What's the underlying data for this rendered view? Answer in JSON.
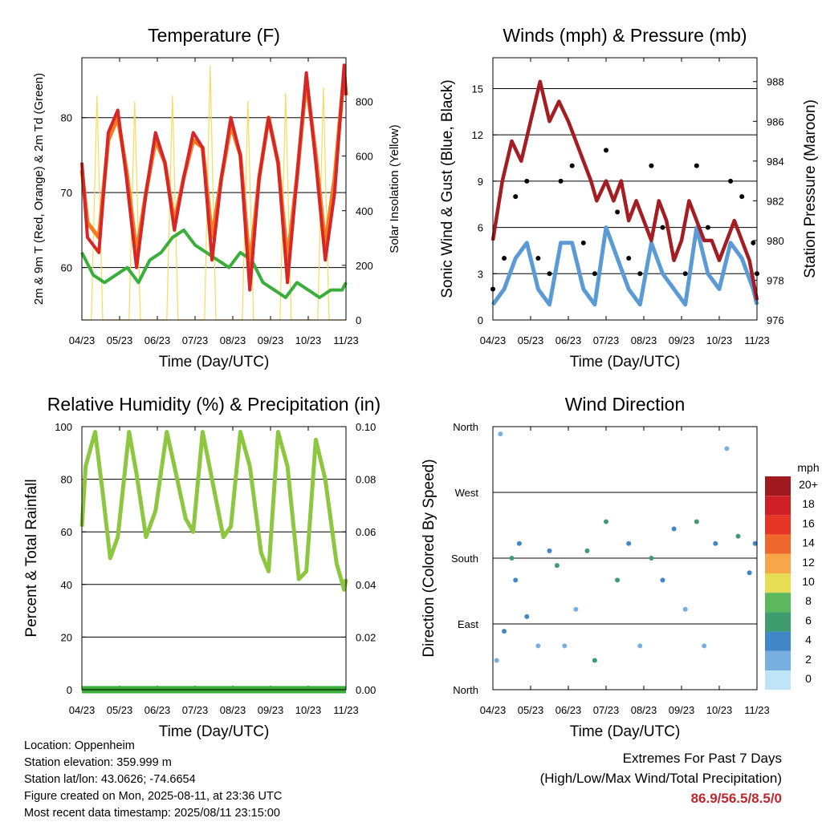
{
  "chart_data": [
    {
      "type": "line",
      "title": "Temperature (F)",
      "xlabel": "Time (Day/UTC)",
      "ylabel": "2m & 9m T (Red, Orange) & 2m Td (Green)",
      "y2label": "Solar Insolation (Yellow)",
      "x_ticks": [
        "04/23",
        "05/23",
        "06/23",
        "07/23",
        "08/23",
        "09/23",
        "10/23",
        "11/23"
      ],
      "x_range": [
        0,
        7
      ],
      "ylim": [
        53,
        88
      ],
      "yticks": [
        60,
        70,
        80
      ],
      "y2lim": [
        0,
        960
      ],
      "y2ticks": [
        0,
        200,
        400,
        600,
        800
      ],
      "grid": "horizontal",
      "series": [
        {
          "name": "2m T",
          "color": "#d62728",
          "axis": "left",
          "x": [
            0.0,
            0.15,
            0.45,
            0.7,
            0.95,
            1.18,
            1.45,
            1.7,
            1.95,
            2.2,
            2.45,
            2.7,
            2.95,
            3.2,
            3.45,
            3.7,
            3.95,
            4.2,
            4.45,
            4.7,
            4.95,
            5.2,
            5.45,
            5.7,
            5.95,
            6.2,
            6.45,
            6.7,
            6.95,
            7.0
          ],
          "y": [
            74,
            64,
            62,
            78,
            81,
            72,
            60,
            70,
            78,
            74,
            65,
            72,
            78,
            76,
            61,
            72,
            80,
            75,
            57,
            72,
            80,
            74,
            58,
            72,
            86,
            74,
            61,
            70,
            87,
            83
          ]
        },
        {
          "name": "9m T",
          "color": "#f47c20",
          "axis": "left",
          "x": [
            0.0,
            0.15,
            0.45,
            0.7,
            0.95,
            1.18,
            1.45,
            1.7,
            1.95,
            2.2,
            2.45,
            2.7,
            2.95,
            3.2,
            3.45,
            3.7,
            3.95,
            4.2,
            4.45,
            4.7,
            4.95,
            5.2,
            5.45,
            5.7,
            5.95,
            6.2,
            6.45,
            6.7,
            6.95,
            7.0
          ],
          "y": [
            73,
            66,
            64,
            77,
            80,
            73,
            62,
            70,
            77,
            74,
            66,
            72,
            77,
            76,
            64,
            72,
            79,
            75,
            60,
            72,
            80,
            74,
            61,
            72,
            85,
            75,
            63,
            72,
            86,
            83
          ]
        },
        {
          "name": "2m Td",
          "color": "#3aae3a",
          "axis": "left",
          "x": [
            0.0,
            0.3,
            0.6,
            0.9,
            1.2,
            1.5,
            1.8,
            2.1,
            2.4,
            2.7,
            3.0,
            3.3,
            3.6,
            3.9,
            4.2,
            4.5,
            4.8,
            5.1,
            5.4,
            5.7,
            6.0,
            6.3,
            6.6,
            6.9,
            7.0
          ],
          "y": [
            62,
            59,
            58,
            59,
            60,
            58,
            61,
            62,
            64,
            65,
            63,
            62,
            61,
            60,
            62,
            61,
            58,
            57,
            56,
            58,
            57,
            56,
            57,
            57,
            58
          ]
        },
        {
          "name": "Solar Insolation",
          "color": "#f5dc5a",
          "axis": "right",
          "x": [
            0.0,
            0.25,
            0.4,
            0.55,
            0.75,
            1.0,
            1.25,
            1.4,
            1.55,
            1.75,
            2.0,
            2.25,
            2.4,
            2.55,
            2.75,
            3.0,
            3.25,
            3.4,
            3.55,
            3.75,
            4.0,
            4.25,
            4.4,
            4.55,
            4.75,
            5.0,
            5.25,
            5.4,
            5.55,
            5.75,
            6.0,
            6.25,
            6.4,
            6.55,
            6.75,
            7.0
          ],
          "y": [
            0,
            0,
            820,
            0,
            0,
            0,
            0,
            800,
            0,
            0,
            0,
            0,
            820,
            0,
            0,
            0,
            0,
            930,
            0,
            0,
            0,
            0,
            800,
            0,
            0,
            0,
            0,
            830,
            0,
            0,
            0,
            0,
            850,
            0,
            0,
            0
          ]
        }
      ]
    },
    {
      "type": "line",
      "title": "Winds (mph) & Pressure (mb)",
      "xlabel": "Time (Day/UTC)",
      "ylabel": "Sonic Wind & Gust (Blue, Black)",
      "y2label": "Station Pressure (Maroon)",
      "x_ticks": [
        "04/23",
        "05/23",
        "06/23",
        "07/23",
        "08/23",
        "09/23",
        "10/23",
        "11/23"
      ],
      "x_range": [
        0,
        7
      ],
      "ylim": [
        0,
        17
      ],
      "yticks": [
        0,
        3,
        6,
        9,
        12,
        15
      ],
      "y2lim": [
        976,
        989.2
      ],
      "y2ticks": [
        976,
        978,
        980,
        982,
        984,
        986,
        988
      ],
      "grid": "horizontal",
      "series": [
        {
          "name": "Sonic Wind",
          "color": "#5b9bd5",
          "axis": "left",
          "x": [
            0.0,
            0.3,
            0.6,
            0.9,
            1.2,
            1.5,
            1.8,
            2.1,
            2.4,
            2.7,
            3.0,
            3.3,
            3.6,
            3.9,
            4.2,
            4.5,
            4.8,
            5.1,
            5.4,
            5.7,
            6.0,
            6.3,
            6.6,
            6.9,
            7.0
          ],
          "y": [
            1,
            2,
            4,
            5,
            2,
            1,
            5,
            5,
            2,
            1,
            6,
            4,
            2,
            1,
            5,
            3,
            2,
            1,
            6,
            3,
            2,
            5,
            4,
            2,
            1
          ]
        },
        {
          "name": "Gust",
          "color": "#000000",
          "axis": "left",
          "x": [
            0.0,
            0.3,
            0.6,
            0.9,
            1.2,
            1.5,
            1.8,
            2.1,
            2.4,
            2.7,
            3.0,
            3.3,
            3.6,
            3.9,
            4.2,
            4.5,
            4.8,
            5.1,
            5.4,
            5.7,
            6.0,
            6.3,
            6.6,
            6.9,
            7.0
          ],
          "y": [
            2,
            4,
            8,
            9,
            4,
            3,
            9,
            10,
            5,
            3,
            11,
            7,
            4,
            3,
            10,
            6,
            4,
            3,
            10,
            6,
            4,
            9,
            8,
            5,
            3
          ]
        },
        {
          "name": "Station Pressure",
          "color": "#a31d22",
          "axis": "right",
          "x": [
            0.0,
            0.25,
            0.5,
            0.75,
            1.0,
            1.25,
            1.5,
            1.75,
            2.0,
            2.2,
            2.4,
            2.6,
            2.75,
            3.0,
            3.2,
            3.4,
            3.6,
            3.8,
            4.0,
            4.2,
            4.4,
            4.6,
            4.8,
            5.0,
            5.2,
            5.4,
            5.6,
            5.8,
            6.0,
            6.2,
            6.4,
            6.6,
            6.8,
            7.0
          ],
          "y": [
            980,
            983,
            985,
            984,
            986,
            988,
            986,
            987,
            986,
            985,
            984,
            983,
            982,
            983,
            982,
            983,
            981,
            982,
            981,
            980,
            982,
            981,
            979,
            980,
            982,
            981,
            980,
            980,
            979,
            980,
            981,
            980,
            979,
            977
          ]
        }
      ]
    },
    {
      "type": "line",
      "title": "Relative Humidity (%) & Precipitation (in)",
      "xlabel": "Time (Day/UTC)",
      "ylabel": "Percent & Total Rainfall",
      "x_ticks": [
        "04/23",
        "05/23",
        "06/23",
        "07/23",
        "08/23",
        "09/23",
        "10/23",
        "11/23"
      ],
      "x_range": [
        0,
        7
      ],
      "ylim": [
        0,
        100
      ],
      "yticks": [
        0,
        20,
        40,
        60,
        80,
        100
      ],
      "y2lim": [
        0,
        0.1
      ],
      "y2ticks": [
        "0.00",
        "0.02",
        "0.04",
        "0.06",
        "0.08",
        "0.10"
      ],
      "grid": "horizontal",
      "series": [
        {
          "name": "Relative Humidity",
          "color": "#8dc63f",
          "axis": "left",
          "x": [
            0.0,
            0.1,
            0.35,
            0.55,
            0.75,
            0.95,
            1.25,
            1.45,
            1.7,
            1.95,
            2.25,
            2.45,
            2.75,
            2.95,
            3.2,
            3.45,
            3.75,
            3.95,
            4.2,
            4.45,
            4.75,
            4.95,
            5.2,
            5.45,
            5.75,
            5.95,
            6.2,
            6.45,
            6.75,
            6.95,
            7.0
          ],
          "y": [
            62,
            85,
            98,
            75,
            50,
            58,
            98,
            82,
            58,
            68,
            98,
            85,
            65,
            60,
            98,
            80,
            58,
            62,
            98,
            85,
            52,
            45,
            98,
            85,
            42,
            45,
            95,
            80,
            48,
            38,
            42
          ]
        },
        {
          "name": "Precipitation",
          "color": "#3aae3a",
          "axis": "right",
          "x": [
            0,
            7
          ],
          "y": [
            0,
            0
          ]
        }
      ]
    },
    {
      "type": "scatter",
      "title": "Wind Direction",
      "xlabel": "Time (Day/UTC)",
      "ylabel": "Direction (Colored By Speed)",
      "x_ticks": [
        "04/23",
        "05/23",
        "06/23",
        "07/23",
        "08/23",
        "09/23",
        "10/23",
        "11/23"
      ],
      "x_range": [
        0,
        7
      ],
      "yticks": [
        "North",
        "East",
        "South",
        "West",
        "North"
      ],
      "ylim": [
        0,
        360
      ],
      "grid": "horizontal",
      "legend_title": "mph",
      "legend_labels": [
        "20+",
        "18",
        "16",
        "14",
        "12",
        "10",
        "8",
        "6",
        "4",
        "2",
        "0"
      ],
      "legend_colors": [
        "#a11a1f",
        "#cf2027",
        "#e53527",
        "#f0692c",
        "#f7a649",
        "#e7dd55",
        "#5cb85c",
        "#3f9c6e",
        "#4186c6",
        "#77b0e0",
        "#bfe3f7"
      ],
      "legend_position": "right",
      "points": [
        {
          "x": 0.1,
          "y": 40,
          "speed": 2
        },
        {
          "x": 0.2,
          "y": 350,
          "speed": 2
        },
        {
          "x": 0.3,
          "y": 80,
          "speed": 4
        },
        {
          "x": 0.5,
          "y": 180,
          "speed": 6
        },
        {
          "x": 0.6,
          "y": 150,
          "speed": 4
        },
        {
          "x": 0.7,
          "y": 200,
          "speed": 4
        },
        {
          "x": 0.9,
          "y": 100,
          "speed": 4
        },
        {
          "x": 1.2,
          "y": 60,
          "speed": 2
        },
        {
          "x": 1.5,
          "y": 190,
          "speed": 4
        },
        {
          "x": 1.7,
          "y": 170,
          "speed": 6
        },
        {
          "x": 1.9,
          "y": 60,
          "speed": 2
        },
        {
          "x": 2.2,
          "y": 110,
          "speed": 2
        },
        {
          "x": 2.5,
          "y": 190,
          "speed": 6
        },
        {
          "x": 2.7,
          "y": 40,
          "speed": 6
        },
        {
          "x": 3.0,
          "y": 230,
          "speed": 6
        },
        {
          "x": 3.3,
          "y": 150,
          "speed": 6
        },
        {
          "x": 3.6,
          "y": 200,
          "speed": 4
        },
        {
          "x": 3.9,
          "y": 60,
          "speed": 2
        },
        {
          "x": 4.2,
          "y": 180,
          "speed": 6
        },
        {
          "x": 4.5,
          "y": 150,
          "speed": 4
        },
        {
          "x": 4.8,
          "y": 220,
          "speed": 4
        },
        {
          "x": 5.1,
          "y": 110,
          "speed": 2
        },
        {
          "x": 5.4,
          "y": 230,
          "speed": 6
        },
        {
          "x": 5.6,
          "y": 60,
          "speed": 2
        },
        {
          "x": 5.9,
          "y": 200,
          "speed": 4
        },
        {
          "x": 6.2,
          "y": 330,
          "speed": 2
        },
        {
          "x": 6.5,
          "y": 210,
          "speed": 6
        },
        {
          "x": 6.8,
          "y": 160,
          "speed": 4
        },
        {
          "x": 6.95,
          "y": 200,
          "speed": 4
        }
      ]
    }
  ],
  "info": {
    "location": "Location: Oppenheim",
    "elevation": "Station elevation: 359.999 m",
    "latlon": "Station lat/lon: 43.0626; -74.6654",
    "created": "Figure created on Mon, 2025-08-11, at 23:36 UTC",
    "recent": "Most recent data timestamp: 2025/08/11 23:15:00"
  },
  "extremes": {
    "title": "Extremes For Past 7 Days",
    "subtitle": "(High/Low/Max Wind/Total Precipitation)",
    "values": "86.9/56.5/8.5/0",
    "value_color": "#c0272d"
  }
}
